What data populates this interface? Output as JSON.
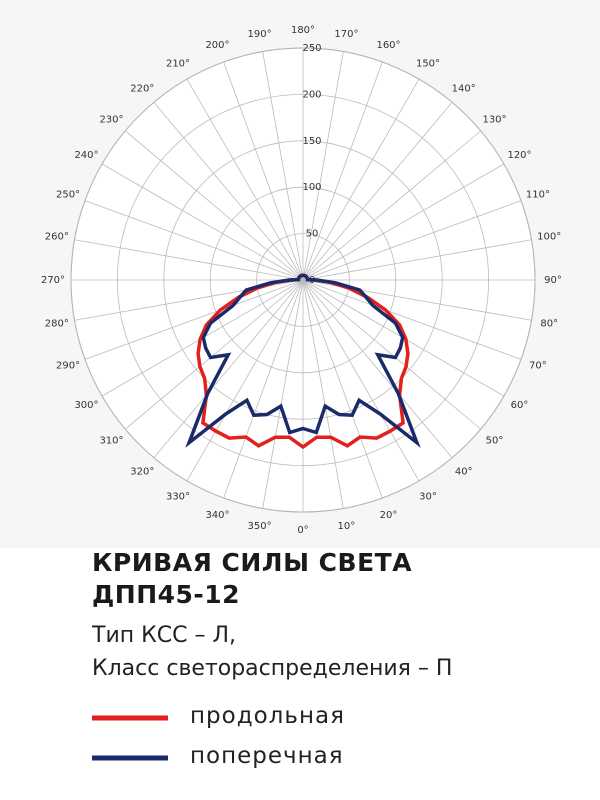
{
  "chart_data": {
    "type": "polar",
    "title": [
      "КРИВАЯ СИЛЫ СВЕТА",
      "ДПП45-12"
    ],
    "subtitle": [
      "Тип КСС – Л,",
      "Класс светораспределения – П"
    ],
    "rlim": [
      0,
      250
    ],
    "rticks": [
      0,
      50,
      100,
      150,
      200,
      250
    ],
    "thetaticks": [
      {
        "value": 0,
        "label": "0°"
      },
      {
        "value": 10,
        "label": "10°"
      },
      {
        "value": 20,
        "label": "20°"
      },
      {
        "value": 30,
        "label": "30°"
      },
      {
        "value": 40,
        "label": "40°"
      },
      {
        "value": 50,
        "label": "50°"
      },
      {
        "value": 60,
        "label": "60°"
      },
      {
        "value": 70,
        "label": "70°"
      },
      {
        "value": 80,
        "label": "80°"
      },
      {
        "value": 90,
        "label": "90°"
      },
      {
        "value": 100,
        "label": "100°"
      },
      {
        "value": 110,
        "label": "110°"
      },
      {
        "value": 120,
        "label": "120°"
      },
      {
        "value": 130,
        "label": "130°"
      },
      {
        "value": 140,
        "label": "140°"
      },
      {
        "value": 150,
        "label": "150°"
      },
      {
        "value": 160,
        "label": "160°"
      },
      {
        "value": 170,
        "label": "170°"
      },
      {
        "value": 180,
        "label": "180°"
      },
      {
        "value": 190,
        "label": "190°"
      },
      {
        "value": 200,
        "label": "200°"
      },
      {
        "value": 210,
        "label": "210°"
      },
      {
        "value": 220,
        "label": "220°"
      },
      {
        "value": 230,
        "label": "230°"
      },
      {
        "value": 240,
        "label": "240°"
      },
      {
        "value": 250,
        "label": "250°"
      },
      {
        "value": 260,
        "label": "260°"
      },
      {
        "value": 270,
        "label": "270°"
      },
      {
        "value": 280,
        "label": "280°"
      },
      {
        "value": 290,
        "label": "290°"
      },
      {
        "value": 300,
        "label": "300°"
      },
      {
        "value": 310,
        "label": "310°"
      },
      {
        "value": 320,
        "label": "320°"
      },
      {
        "value": 330,
        "label": "330°"
      },
      {
        "value": 340,
        "label": "340°"
      },
      {
        "value": 350,
        "label": "350°"
      }
    ],
    "theta": [
      0,
      5,
      10,
      15,
      20,
      25,
      30,
      35,
      40,
      45,
      50,
      55,
      60,
      65,
      70,
      75,
      80,
      85,
      90,
      95,
      100,
      105,
      110,
      115,
      120,
      125,
      130,
      135,
      140,
      145,
      150,
      155,
      160,
      165,
      170,
      175,
      180,
      185,
      190,
      195,
      200,
      205,
      210,
      215,
      220,
      225,
      230,
      235,
      240,
      245,
      250,
      255,
      260,
      265,
      270,
      275,
      280,
      285,
      290,
      295,
      300,
      305,
      310,
      315,
      320,
      325,
      330,
      335,
      340,
      345,
      350,
      355
    ],
    "series": [
      {
        "name": "продольная",
        "color": "#e3201b",
        "values": [
          180,
          170,
          172,
          185,
          180,
          188,
          188,
          188,
          162,
          150,
          145,
          138,
          128,
          115,
          95,
          72,
          50,
          30,
          12,
          5,
          5,
          5,
          5,
          5,
          5,
          5,
          5,
          5,
          5,
          5,
          5,
          5,
          5,
          5,
          5,
          5,
          5,
          5,
          5,
          5,
          5,
          5,
          5,
          5,
          5,
          5,
          5,
          5,
          5,
          5,
          5,
          5,
          5,
          5,
          12,
          30,
          50,
          72,
          95,
          115,
          128,
          138,
          145,
          150,
          162,
          188,
          188,
          188,
          180,
          185,
          172,
          170
        ]
      },
      {
        "name": "поперечная",
        "color": "#1b2a6b",
        "values": [
          160,
          165,
          138,
          150,
          155,
          143,
          167,
          214,
          160,
          114,
          130,
          128,
          124,
          110,
          80,
          70,
          62,
          35,
          15,
          5,
          5,
          5,
          5,
          5,
          5,
          5,
          5,
          5,
          5,
          5,
          5,
          5,
          5,
          5,
          5,
          5,
          5,
          5,
          5,
          5,
          5,
          5,
          5,
          5,
          5,
          5,
          5,
          5,
          5,
          5,
          5,
          5,
          5,
          5,
          15,
          35,
          62,
          70,
          80,
          110,
          124,
          128,
          130,
          114,
          160,
          214,
          167,
          143,
          155,
          150,
          138,
          165
        ]
      }
    ]
  }
}
